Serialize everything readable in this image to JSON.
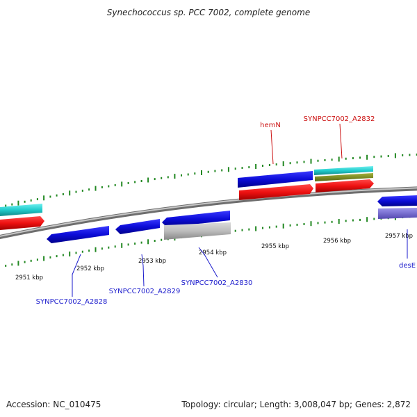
{
  "title": "Synechococcus sp. PCC 7002, complete genome",
  "footer": {
    "accession": "Accession: NC_010475",
    "summary": "Topology: circular; Length: 3,008,047 bp; Genes: 2,872"
  },
  "scale_labels": [
    "2951 kbp",
    "2952 kbp",
    "2953 kbp",
    "2954 kbp",
    "2955 kbp",
    "2956 kbp",
    "2957 kbp"
  ],
  "gene_labels": {
    "hemN": "hemN",
    "A2832": "SYNPCC7002_A2832",
    "A2828": "SYNPCC7002_A2828",
    "A2829": "SYNPCC7002_A2829",
    "A2830": "SYNPCC7002_A2830",
    "desE": "desE"
  },
  "colors": {
    "backbone": "#8c8c8c",
    "cds": "#1010e0",
    "gene": "#ee1111",
    "trna": "#22cccc",
    "misc": "#7a8a22",
    "pseudo": "#b8b8b8",
    "other": "#7a6fd6",
    "tick": "#228822",
    "label_blue": "#1a1acc",
    "label_red": "#cc1111"
  }
}
